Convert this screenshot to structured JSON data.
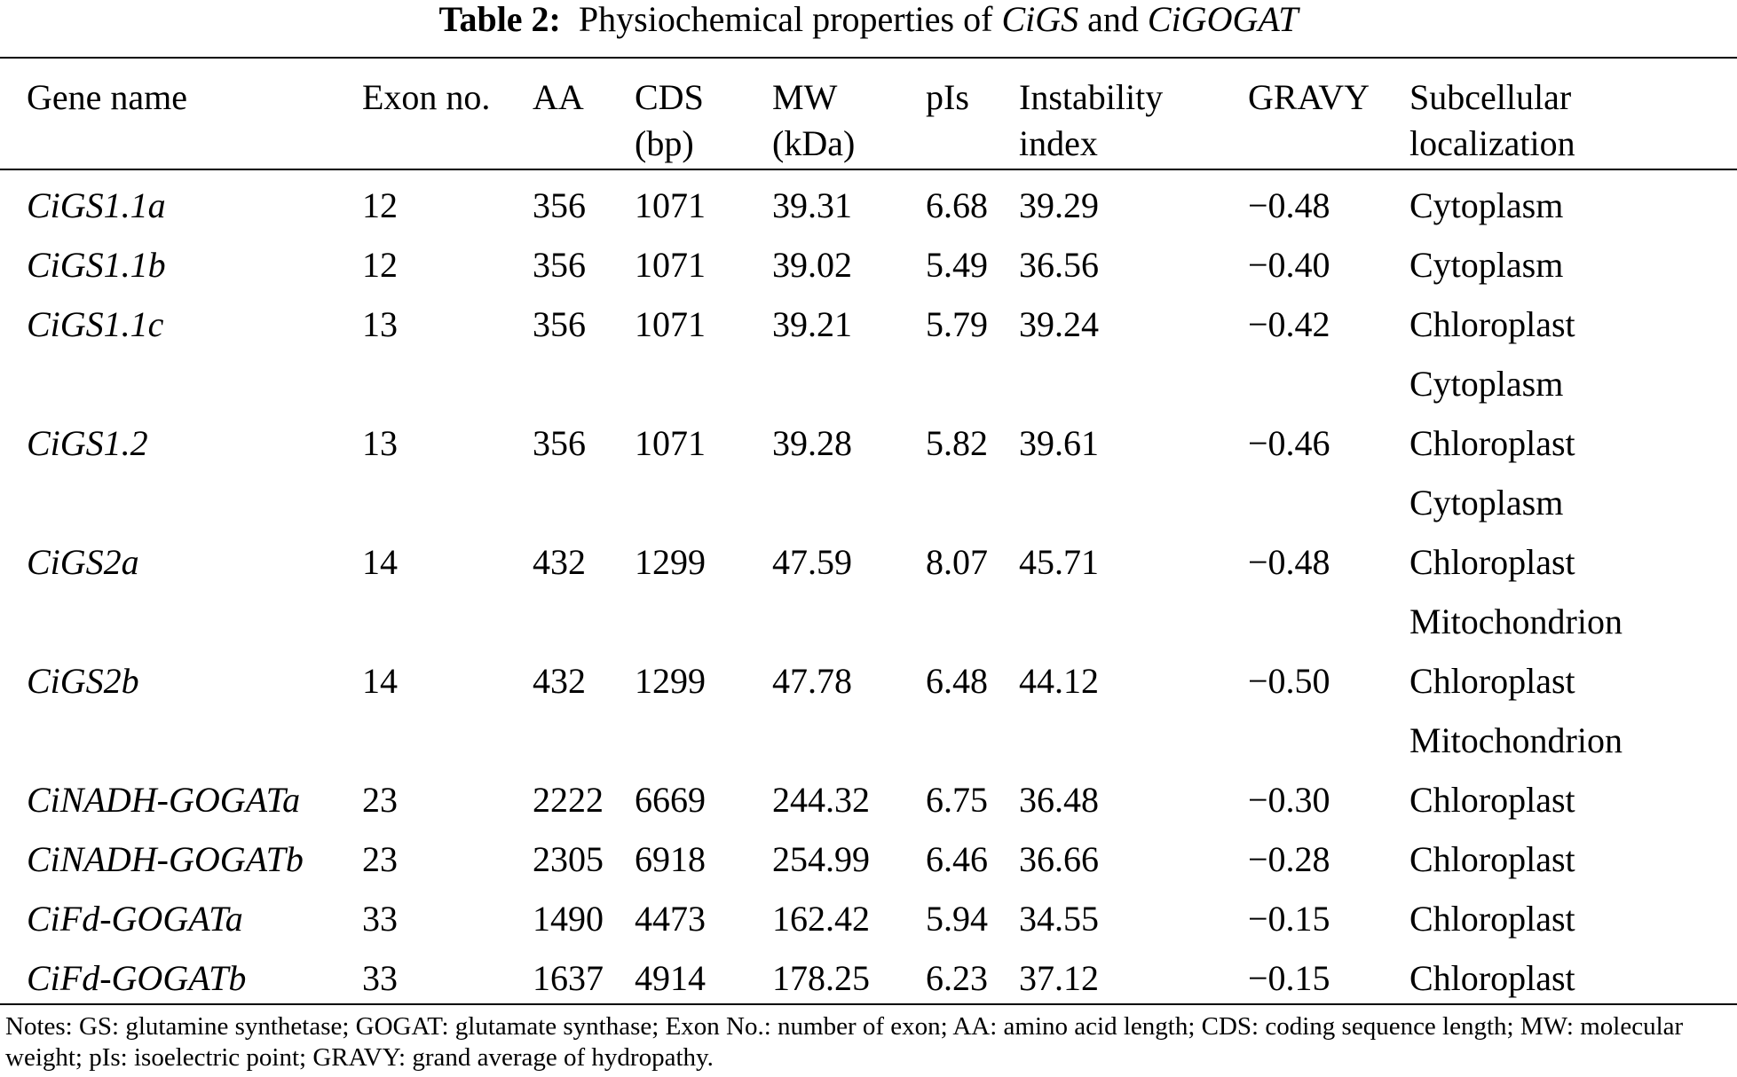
{
  "title": {
    "label": "Table 2:",
    "text": "Physiochemical properties of ",
    "gene1": "CiGS",
    "and": " and ",
    "gene2": "CiGOGAT"
  },
  "headers": [
    [
      "Gene name",
      ""
    ],
    [
      "Exon no.",
      ""
    ],
    [
      "AA",
      ""
    ],
    [
      "CDS",
      "(bp)"
    ],
    [
      "MW",
      "(kDa)"
    ],
    [
      "pIs",
      ""
    ],
    [
      "Instability",
      "index"
    ],
    [
      "GRAVY",
      ""
    ],
    [
      "Subcellular",
      "localization"
    ]
  ],
  "rows": [
    [
      "CiGS1.1a",
      "12",
      "356",
      "1071",
      "39.31",
      "6.68",
      "39.29",
      "−0.48",
      "Cytoplasm"
    ],
    [
      "CiGS1.1b",
      "12",
      "356",
      "1071",
      "39.02",
      "5.49",
      "36.56",
      "−0.40",
      "Cytoplasm"
    ],
    [
      "CiGS1.1c",
      "13",
      "356",
      "1071",
      "39.21",
      "5.79",
      "39.24",
      "−0.42",
      "Chloroplast"
    ],
    [
      "",
      "",
      "",
      "",
      "",
      "",
      "",
      "",
      "Cytoplasm"
    ],
    [
      "CiGS1.2",
      "13",
      "356",
      "1071",
      "39.28",
      "5.82",
      "39.61",
      "−0.46",
      "Chloroplast"
    ],
    [
      "",
      "",
      "",
      "",
      "",
      "",
      "",
      "",
      "Cytoplasm"
    ],
    [
      "CiGS2a",
      "14",
      "432",
      "1299",
      "47.59",
      "8.07",
      "45.71",
      "−0.48",
      "Chloroplast"
    ],
    [
      "",
      "",
      "",
      "",
      "",
      "",
      "",
      "",
      "Mitochondrion"
    ],
    [
      "CiGS2b",
      "14",
      "432",
      "1299",
      "47.78",
      "6.48",
      "44.12",
      "−0.50",
      "Chloroplast"
    ],
    [
      "",
      "",
      "",
      "",
      "",
      "",
      "",
      "",
      "Mitochondrion"
    ],
    [
      "CiNADH-GOGATa",
      "23",
      "2222",
      "6669",
      "244.32",
      "6.75",
      "36.48",
      "−0.30",
      "Chloroplast"
    ],
    [
      "CiNADH-GOGATb",
      "23",
      "2305",
      "6918",
      "254.99",
      "6.46",
      "36.66",
      "−0.28",
      "Chloroplast"
    ],
    [
      "CiFd-GOGATa",
      "33",
      "1490",
      "4473",
      "162.42",
      "5.94",
      "34.55",
      "−0.15",
      "Chloroplast"
    ],
    [
      "CiFd-GOGATb",
      "33",
      "1637",
      "4914",
      "178.25",
      "6.23",
      "37.12",
      "−0.15",
      "Chloroplast"
    ]
  ],
  "notes": "Notes: GS: glutamine synthetase; GOGAT: glutamate synthase; Exon No.: number of exon; AA: amino acid length; CDS: coding sequence length; MW: molecular weight; pIs: isoelectric point; GRAVY: grand average of hydropathy."
}
